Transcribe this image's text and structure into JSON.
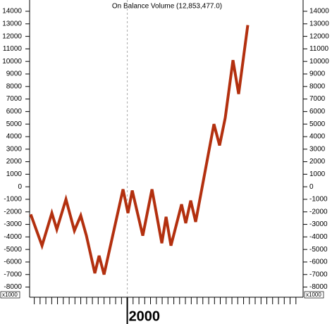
{
  "chart_data": {
    "type": "line",
    "title": "On Balance Volume (12,853,477.0)",
    "y_unit_label": "x1000",
    "color": "#b3300f",
    "x": [
      1998.616,
      1998.778,
      1998.919,
      1998.99,
      1999.121,
      1999.242,
      1999.333,
      1999.414,
      1999.535,
      1999.596,
      1999.667,
      1999.939,
      2000.01,
      2000.071,
      2000.222,
      2000.354,
      2000.495,
      2000.556,
      2000.626,
      2000.778,
      2000.838,
      2000.909,
      2000.98,
      2001.242,
      2001.323,
      2001.404,
      2001.515,
      2001.596,
      2001.727
    ],
    "values": [
      -2200,
      -4700,
      -2100,
      -3400,
      -1000,
      -3500,
      -2300,
      -3900,
      -6900,
      -5500,
      -7000,
      -200,
      -2100,
      -300,
      -3900,
      -200,
      -4500,
      -2400,
      -4700,
      -1400,
      -2900,
      -1100,
      -2800,
      5000,
      3300,
      5500,
      10100,
      7400,
      12900
    ],
    "xlim": [
      1998.6,
      2002.52
    ],
    "xticks": [
      2000
    ],
    "xminorticks": [
      1998.667,
      1998.75,
      1998.833,
      1998.917,
      1999,
      1999.083,
      1999.167,
      1999.25,
      1999.333,
      1999.417,
      1999.5,
      1999.583,
      1999.667,
      1999.75,
      1999.833,
      1999.917,
      2000.083,
      2000.167,
      2000.25,
      2000.333,
      2000.417,
      2000.5,
      2000.583,
      2000.667,
      2000.75,
      2000.833,
      2000.917,
      2001,
      2001.083,
      2001.167,
      2001.25,
      2001.333,
      2001.417,
      2001.5,
      2001.583,
      2001.667,
      2001.75,
      2001.833,
      2001.917,
      2002,
      2002.083,
      2002.167,
      2002.25,
      2002.333,
      2002.417
    ],
    "ylim": [
      -8700,
      14900
    ],
    "yticks": [
      -8000,
      -7000,
      -6000,
      -5000,
      -4000,
      -3000,
      -2000,
      -1000,
      0,
      1000,
      2000,
      3000,
      4000,
      5000,
      6000,
      7000,
      8000,
      9000,
      10000,
      11000,
      12000,
      13000,
      14000
    ],
    "x_grid_dashed": true
  }
}
